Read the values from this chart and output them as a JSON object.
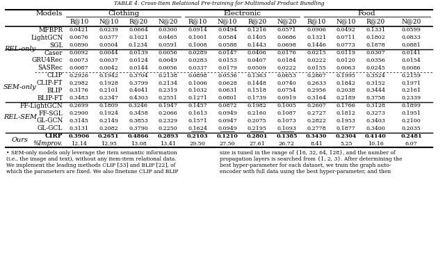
{
  "title": "TABLE 4. Cross-Item Relational Pre-training for Multimodal Product Bundling",
  "col_groups": [
    "Clothing",
    "Electronic",
    "Food"
  ],
  "col_metrics": [
    "R@10",
    "N@10",
    "R@20",
    "N@20"
  ],
  "row_groups": [
    {
      "name": "REL-only",
      "models": [
        "MFBPR",
        "LightGCN",
        "SGL",
        "Caser",
        "GRU4Rec",
        "SASRec"
      ]
    },
    {
      "name": "SEM-only",
      "models": [
        "CLIP",
        "CLIP-FT",
        "BLIP",
        "BLIP-FT"
      ]
    },
    {
      "name": "REL-SEM",
      "models": [
        "FF-LightGCN",
        "FF-SGL",
        "GL-GCN",
        "GL-GCL"
      ]
    },
    {
      "name": "Ours",
      "models": [
        "CIRP",
        "%Improv."
      ]
    }
  ],
  "data": {
    "MFBPR": [
      0.0421,
      0.0239,
      0.0664,
      0.03,
      0.0914,
      0.0494,
      0.1216,
      0.0571,
      0.0906,
      0.0492,
      0.1331,
      0.0599
    ],
    "LightGCN": [
      0.0676,
      0.0377,
      0.1021,
      0.0465,
      0.1001,
      0.0584,
      0.1405,
      0.0686,
      0.1321,
      0.0711,
      0.1802,
      0.0833
    ],
    "SGL": [
      0.089,
      0.0504,
      0.1234,
      0.0591,
      0.1008,
      0.0588,
      0.1443,
      0.0698,
      0.1446,
      0.0773,
      0.1878,
      0.0881
    ],
    "Caser": [
      0.0092,
      0.0044,
      0.0139,
      0.0056,
      0.0289,
      0.0147,
      0.0406,
      0.0176,
      0.0215,
      0.0119,
      0.0307,
      0.0141
    ],
    "GRU4Rec": [
      0.0073,
      0.0037,
      0.0124,
      0.0049,
      0.0283,
      0.0153,
      0.0407,
      0.0184,
      0.0222,
      0.012,
      0.0356,
      0.0154
    ],
    "SASRec": [
      0.0087,
      0.0042,
      0.0144,
      0.0056,
      0.0337,
      0.0179,
      0.0509,
      0.0222,
      0.0155,
      0.0063,
      0.0245,
      0.0086
    ],
    "CLIP": [
      0.2926,
      0.1942,
      0.3704,
      0.2138,
      0.0898,
      0.0536,
      0.1363,
      0.0653,
      0.2867,
      0.1995,
      0.3524,
      0.2159
    ],
    "CLIP-FT": [
      0.2982,
      0.1928,
      0.3799,
      0.2134,
      0.1006,
      0.0628,
      0.1448,
      0.074,
      0.2633,
      0.1842,
      0.3152,
      0.1971
    ],
    "BLIP": [
      0.3176,
      0.2101,
      0.4041,
      0.2319,
      0.1032,
      0.0631,
      0.1518,
      0.0754,
      0.2956,
      0.2038,
      0.3444,
      0.2161
    ],
    "BLIP-FT": [
      0.3483,
      0.2347,
      0.4303,
      0.2551,
      0.1271,
      0.0801,
      0.1739,
      0.0919,
      0.3164,
      0.2189,
      0.3758,
      0.2339
    ],
    "FF-LightGCN": [
      0.2699,
      0.1809,
      0.3246,
      0.1947,
      0.1457,
      0.0872,
      0.1982,
      0.1005,
      0.2607,
      0.1766,
      0.3128,
      0.1899
    ],
    "FF-SGL": [
      0.29,
      0.1924,
      0.3458,
      0.2066,
      0.1613,
      0.0949,
      0.216,
      0.1087,
      0.2727,
      0.1812,
      0.3273,
      0.1951
    ],
    "GL-GCN": [
      0.3145,
      0.2149,
      0.3853,
      0.2329,
      0.1571,
      0.0947,
      0.2075,
      0.1073,
      0.2822,
      0.1953,
      0.3403,
      0.21
    ],
    "GL-GCL": [
      0.3131,
      0.2082,
      0.379,
      0.225,
      0.1624,
      0.0949,
      0.2195,
      0.1093,
      0.2778,
      0.1877,
      0.34,
      0.2035
    ],
    "CIRP": [
      0.3906,
      0.2651,
      0.4866,
      0.2893,
      0.2103,
      0.121,
      0.2801,
      0.1385,
      0.343,
      0.2304,
      0.414,
      0.2481
    ],
    "%Improv.": [
      12.14,
      12.95,
      13.08,
      13.41,
      29.5,
      27.5,
      27.61,
      26.72,
      8.41,
      5.25,
      10.16,
      6.07
    ]
  },
  "underline_cols": [
    4,
    5,
    6,
    7
  ],
  "underline_row": "GL-GCL",
  "bold_rows": [
    "CIRP"
  ],
  "separator_after_thick": [
    "SGL",
    "BLIP-FT",
    "GL-GCL"
  ],
  "sub_separator_after": [
    "SASRec"
  ],
  "footnote_left": "• SEM-only models only leverage the item semantic information\n(i.e., the image and text), without any item-item relational data.\nWe implement the leading methods CLIP [33] and BLIP [22], of\nwhich the parameters are fixed. We also finetune CLIP and BLIP",
  "footnote_right": "size is tuned in the range of {16, 32, 64, 128}, and the number of\npropagation layers is searched from {1, 2, 3}. After determining the\nbest hyper-parameter for each dataset, we train the graph auto-\nencoder with full data using the best hyper-parameter, and then"
}
